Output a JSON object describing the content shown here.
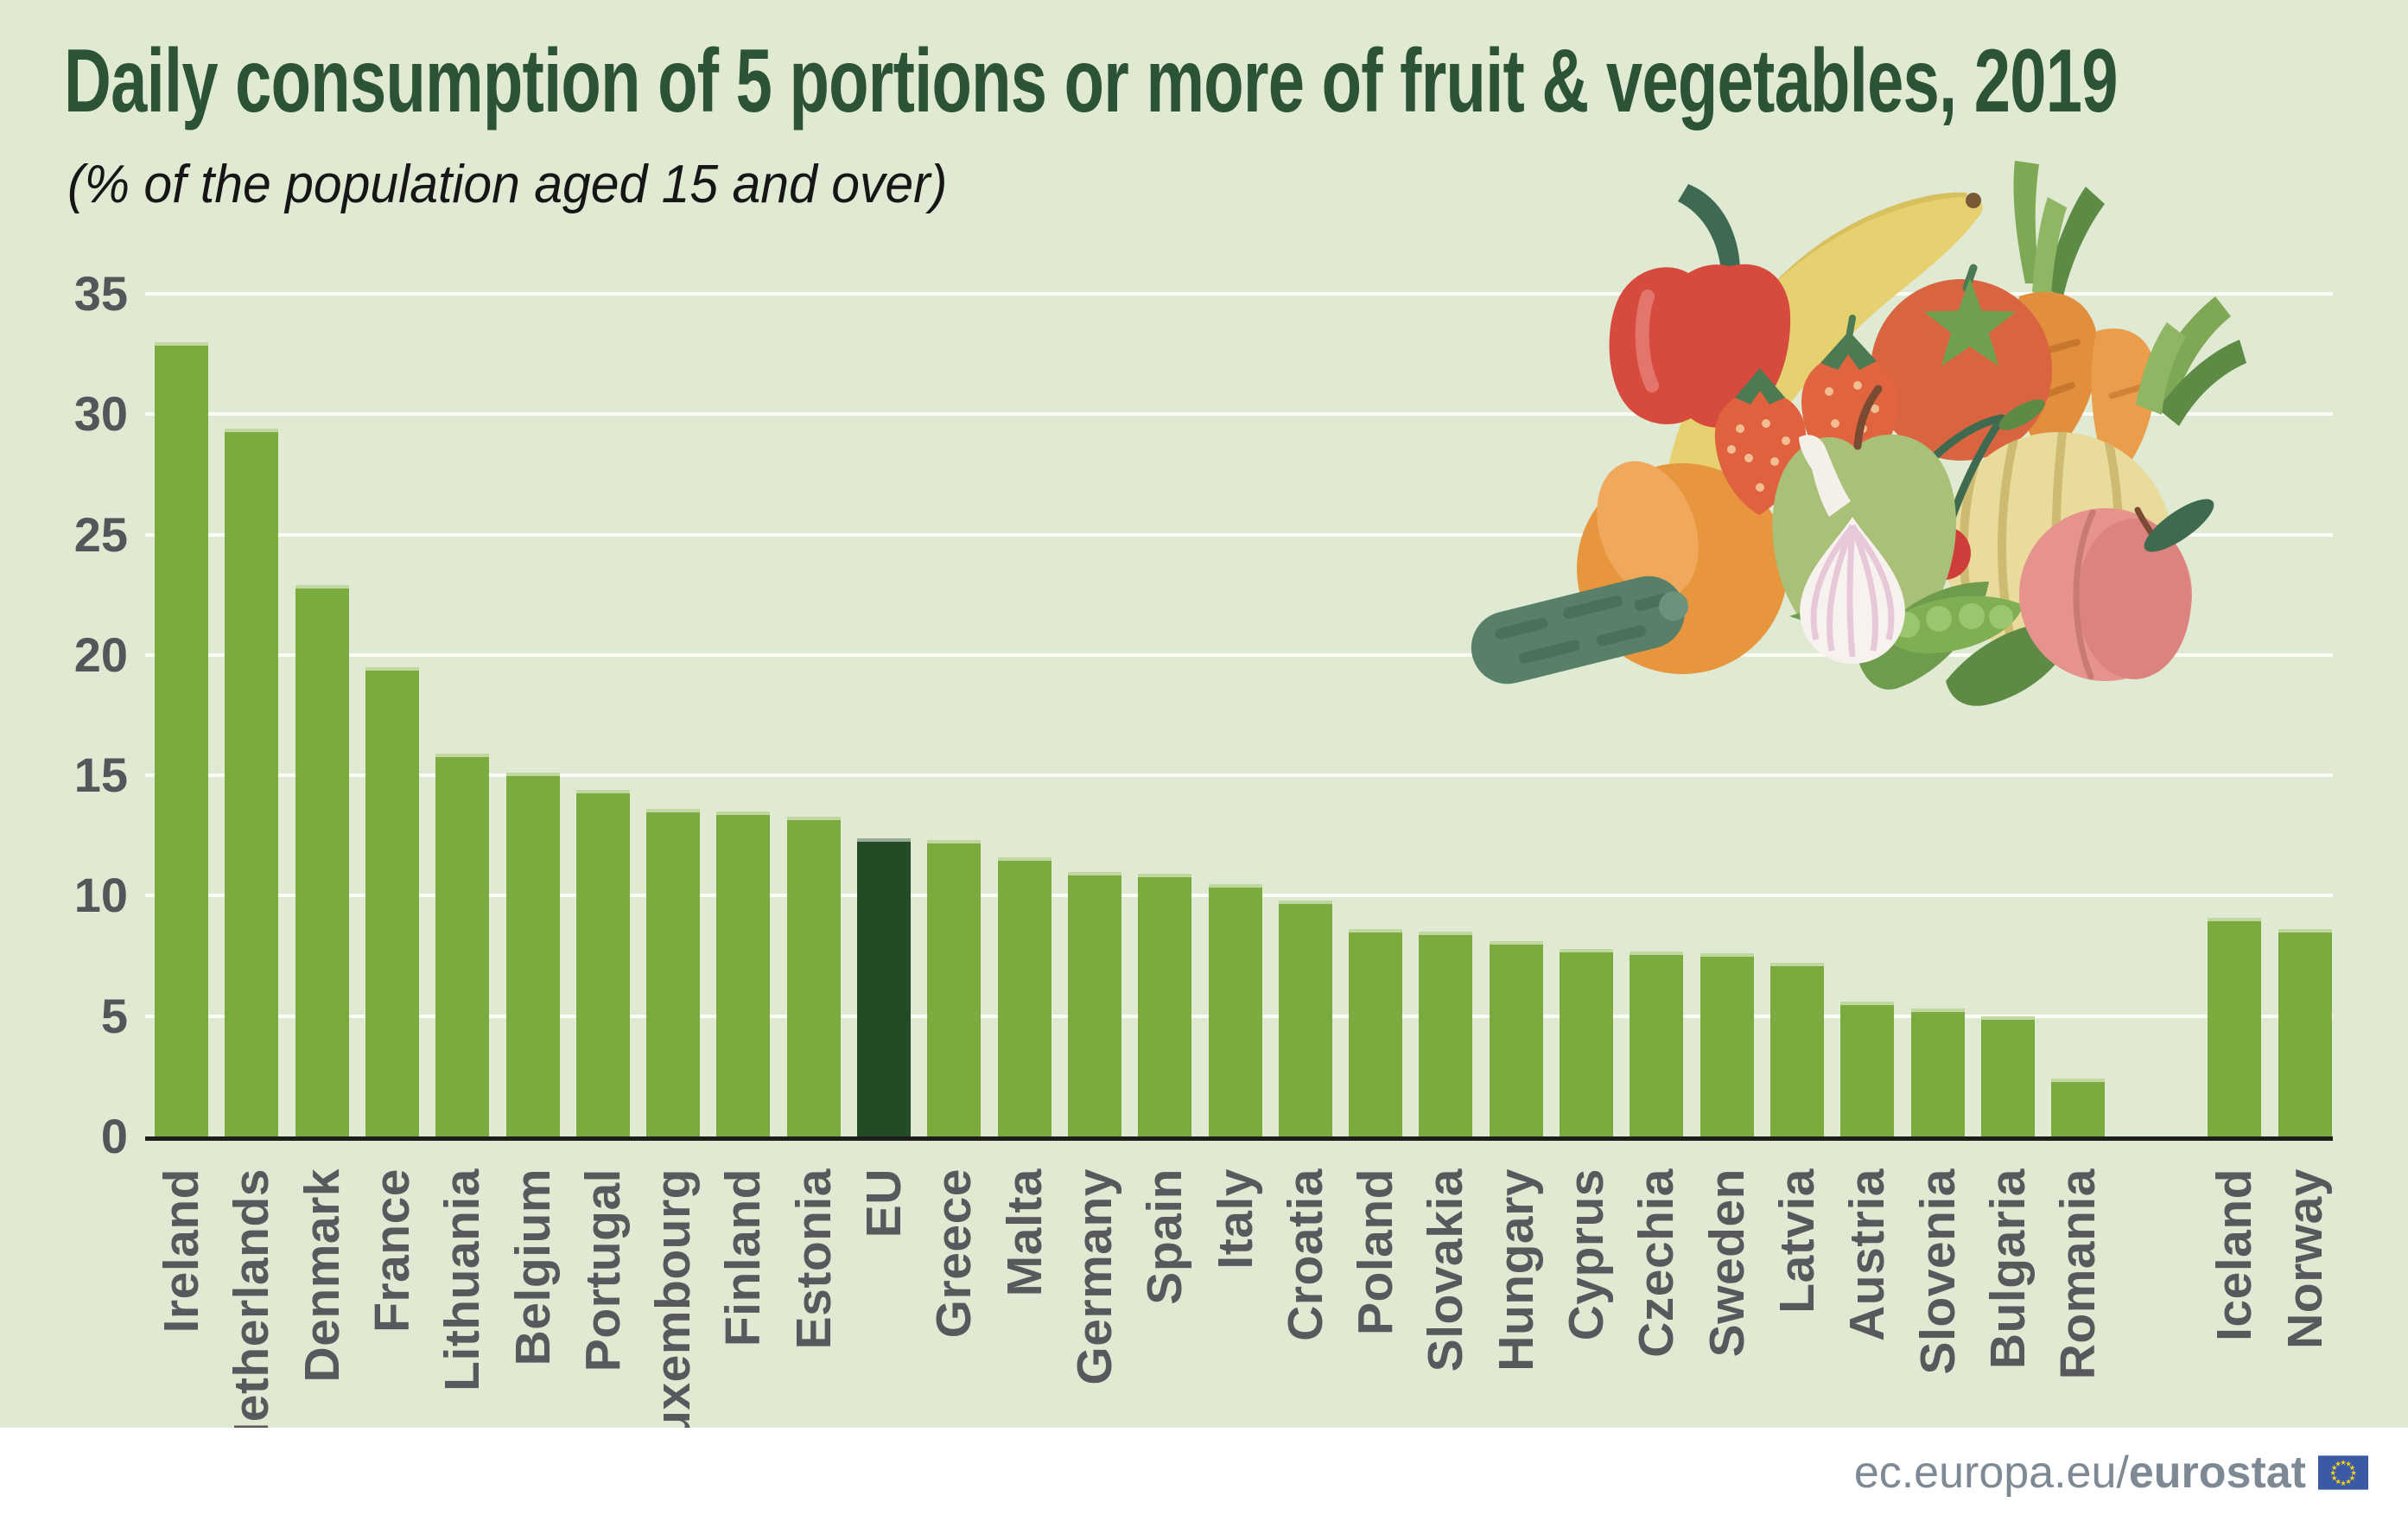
{
  "title": "Daily consumption of 5 portions or more of fruit & vegetables, 2019",
  "subtitle": "(% of  the population aged 15 and over)",
  "footer": {
    "url_prefix": "ec.europa.eu/",
    "url_bold": "eurostat",
    "flag_icon": "eu-flag"
  },
  "colors": {
    "background": "#e0e9d2",
    "bar": "#7bab3e",
    "eu_bar": "#224b26",
    "bar_top_edge": "#b7cf90",
    "gridline": "#fbfcf5",
    "axis": "#1d1e1b",
    "title": "#2b5334",
    "tick_label": "#55565a",
    "x_label": "#58595c",
    "footer_text": "#7d8994",
    "flag_blue": "#3b5aa5",
    "flag_star": "#f7d117"
  },
  "chart_data": {
    "type": "bar",
    "title": "Daily consumption of 5 portions or more of fruit & vegetables, 2019",
    "subtitle_unit": "% of the population aged 15 and over",
    "categories": [
      "Ireland",
      "Netherlands",
      "Denmark",
      "France",
      "Lithuania",
      "Belgium",
      "Portugal",
      "Luxembourg",
      "Finland",
      "Estonia",
      "EU",
      "Greece",
      "Malta",
      "Germany",
      "Spain",
      "Italy",
      "Croatia",
      "Poland",
      "Slovakia",
      "Hungary",
      "Cyprus",
      "Czechia",
      "Sweden",
      "Latvia",
      "Austria",
      "Slovenia",
      "Bulgaria",
      "Romania",
      "Iceland",
      "Norway"
    ],
    "values": [
      33.0,
      29.4,
      22.9,
      19.5,
      15.9,
      15.1,
      14.4,
      13.6,
      13.5,
      13.3,
      12.4,
      12.3,
      11.6,
      11.0,
      10.9,
      10.5,
      9.8,
      8.6,
      8.5,
      8.1,
      7.8,
      7.7,
      7.6,
      7.2,
      5.6,
      5.3,
      5.0,
      2.4,
      9.1,
      8.6
    ],
    "highlight_category": "EU",
    "highlight_style": "dark-green bar",
    "gap_after": "Romania",
    "non_eu_countries": [
      "Iceland",
      "Norway"
    ],
    "xlabel": "",
    "ylabel": "",
    "ylim": [
      0,
      35
    ],
    "yticks": [
      0,
      5,
      10,
      15,
      20,
      25,
      30,
      35
    ],
    "grid": "horizontal white gridlines",
    "legend": "none",
    "xlabel_rotation": -90
  }
}
